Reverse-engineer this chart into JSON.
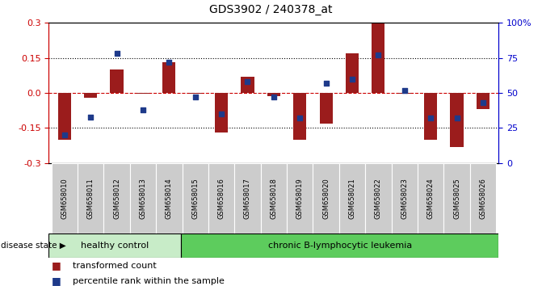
{
  "title": "GDS3902 / 240378_at",
  "samples": [
    "GSM658010",
    "GSM658011",
    "GSM658012",
    "GSM658013",
    "GSM658014",
    "GSM658015",
    "GSM658016",
    "GSM658017",
    "GSM658018",
    "GSM658019",
    "GSM658020",
    "GSM658021",
    "GSM658022",
    "GSM658023",
    "GSM658024",
    "GSM658025",
    "GSM658026"
  ],
  "red_values": [
    -0.2,
    -0.02,
    0.1,
    -0.005,
    0.13,
    -0.003,
    -0.17,
    0.07,
    -0.015,
    -0.2,
    -0.13,
    0.17,
    0.3,
    -0.005,
    -0.2,
    -0.23,
    -0.07
  ],
  "blue_percentiles": [
    20,
    33,
    78,
    38,
    72,
    47,
    35,
    58,
    47,
    32,
    57,
    60,
    77,
    52,
    32,
    32,
    43
  ],
  "healthy_count": 5,
  "healthy_label": "healthy control",
  "disease_label": "chronic B-lymphocytic leukemia",
  "disease_state_label": "disease state",
  "legend_red": "transformed count",
  "legend_blue": "percentile rank within the sample",
  "ylim": [
    -0.3,
    0.3
  ],
  "y2lim": [
    0,
    100
  ],
  "yticks_left": [
    -0.3,
    -0.15,
    0.0,
    0.15,
    0.3
  ],
  "yticks_right": [
    0,
    25,
    50,
    75,
    100
  ],
  "dotted_lines": [
    -0.15,
    0.15
  ],
  "bar_width": 0.5,
  "bar_color": "#9B1C1C",
  "blue_color": "#1E3A8A",
  "healthy_bg": "#c8ecc8",
  "disease_bg": "#5dcc5d",
  "tick_label_bg": "#cccccc",
  "red_axis_color": "#cc0000",
  "blue_axis_color": "#0000cc",
  "zero_line_color": "#cc0000",
  "plot_bg": "#ffffff",
  "fig_bg": "#ffffff"
}
